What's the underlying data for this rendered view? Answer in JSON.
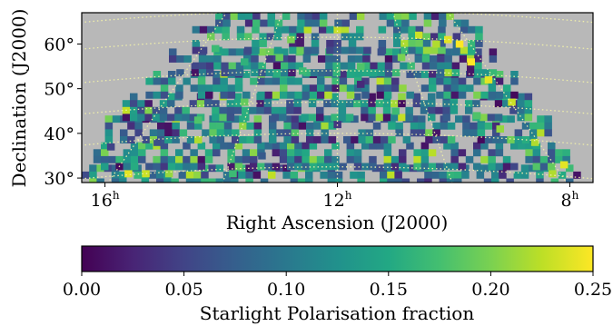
{
  "chart_data": {
    "type": "heatmap",
    "xlabel": "Right Ascension (J2000)",
    "ylabel": "Declination (J2000)",
    "x_ticks": [
      {
        "value": 16,
        "label": "16",
        "unit": "h"
      },
      {
        "value": 12,
        "label": "12",
        "unit": "h"
      },
      {
        "value": 8,
        "label": "8",
        "unit": "h"
      }
    ],
    "y_ticks": [
      {
        "value": 30,
        "label": "30°"
      },
      {
        "value": 40,
        "label": "40°"
      },
      {
        "value": 50,
        "label": "50°"
      },
      {
        "value": 60,
        "label": "60°"
      }
    ],
    "xlim": [
      16.4,
      7.6
    ],
    "ylim": [
      29,
      67
    ],
    "background_color": "#b8b8b8",
    "grid": true,
    "grid_style": "dotted",
    "grid_color": "#eeeeaa",
    "colormap": "viridis",
    "colorbar": {
      "label": "Starlight Polarisation fraction",
      "orientation": "horizontal",
      "placement": "bottom",
      "range": [
        0.0,
        0.25
      ],
      "ticks": [
        "0.00",
        "0.05",
        "0.10",
        "0.15",
        "0.20",
        "0.25"
      ]
    },
    "footprint": {
      "rows_bottom_to_top": [
        {
          "dec_min": 29,
          "dec_max": 33,
          "ra_start": 16.4,
          "ra_end": 7.9
        },
        {
          "dec_min": 33,
          "dec_max": 38,
          "ra_start": 16.2,
          "ra_end": 8.1
        },
        {
          "dec_min": 38,
          "dec_max": 44,
          "ra_start": 16.0,
          "ra_end": 8.4
        },
        {
          "dec_min": 44,
          "dec_max": 49,
          "ra_start": 15.7,
          "ra_end": 8.7
        },
        {
          "dec_min": 49,
          "dec_max": 54,
          "ra_start": 15.3,
          "ra_end": 9.0
        },
        {
          "dec_min": 54,
          "dec_max": 59,
          "ra_start": 14.9,
          "ra_end": 9.3
        },
        {
          "dec_min": 59,
          "dec_max": 64,
          "ra_start": 14.5,
          "ra_end": 9.6
        },
        {
          "dec_min": 64,
          "dec_max": 67,
          "ra_start": 14.1,
          "ra_end": 9.8
        }
      ]
    },
    "cells": [
      {
        "ra": 15.6,
        "dec": 31,
        "value": 0.24
      },
      {
        "ra": 15.3,
        "dec": 31,
        "value": 0.23
      },
      {
        "ra": 14.9,
        "dec": 31,
        "value": 0.21
      },
      {
        "ra": 13.8,
        "dec": 31,
        "value": 0.17
      },
      {
        "ra": 8.3,
        "dec": 31,
        "value": 0.22
      },
      {
        "ra": 8.1,
        "dec": 33,
        "value": 0.24
      },
      {
        "ra": 8.6,
        "dec": 38,
        "value": 0.22
      },
      {
        "ra": 9.2,
        "dec": 41,
        "value": 0.21
      },
      {
        "ra": 9.0,
        "dec": 47,
        "value": 0.23
      },
      {
        "ra": 9.4,
        "dec": 52,
        "value": 0.24
      },
      {
        "ra": 9.7,
        "dec": 56,
        "value": 0.25
      },
      {
        "ra": 10.3,
        "dec": 60,
        "value": 0.22
      },
      {
        "ra": 10.1,
        "dec": 61,
        "value": 0.24
      },
      {
        "ra": 10.6,
        "dec": 62,
        "value": 0.23
      },
      {
        "ra": 9.9,
        "dec": 60,
        "value": 0.25
      },
      {
        "ra": 12.8,
        "dec": 61,
        "value": 0.2
      },
      {
        "ra": 13.0,
        "dec": 57,
        "value": 0.19
      },
      {
        "ra": 11.6,
        "dec": 55,
        "value": 0.18
      },
      {
        "ra": 12.6,
        "dec": 54,
        "value": 0.17
      },
      {
        "ra": 10.9,
        "dec": 57,
        "value": 0.2
      },
      {
        "ra": 14.1,
        "dec": 59,
        "value": 0.17
      },
      {
        "ra": 13.6,
        "dec": 56,
        "value": 0.16
      },
      {
        "ra": 15.9,
        "dec": 37,
        "value": 0.05
      },
      {
        "ra": 15.1,
        "dec": 38,
        "value": 0.06
      },
      {
        "ra": 12.0,
        "dec": 42,
        "value": 0.04
      },
      {
        "ra": 11.6,
        "dec": 51,
        "value": 0.03
      },
      {
        "ra": 13.3,
        "dec": 35,
        "value": 0.07
      },
      {
        "ra": 14.4,
        "dec": 43,
        "value": 0.18
      },
      {
        "ra": 13.6,
        "dec": 47,
        "value": 0.19
      },
      {
        "ra": 11.0,
        "dec": 45,
        "value": 0.17
      },
      {
        "ra": 9.6,
        "dec": 44,
        "value": 0.18
      }
    ]
  }
}
